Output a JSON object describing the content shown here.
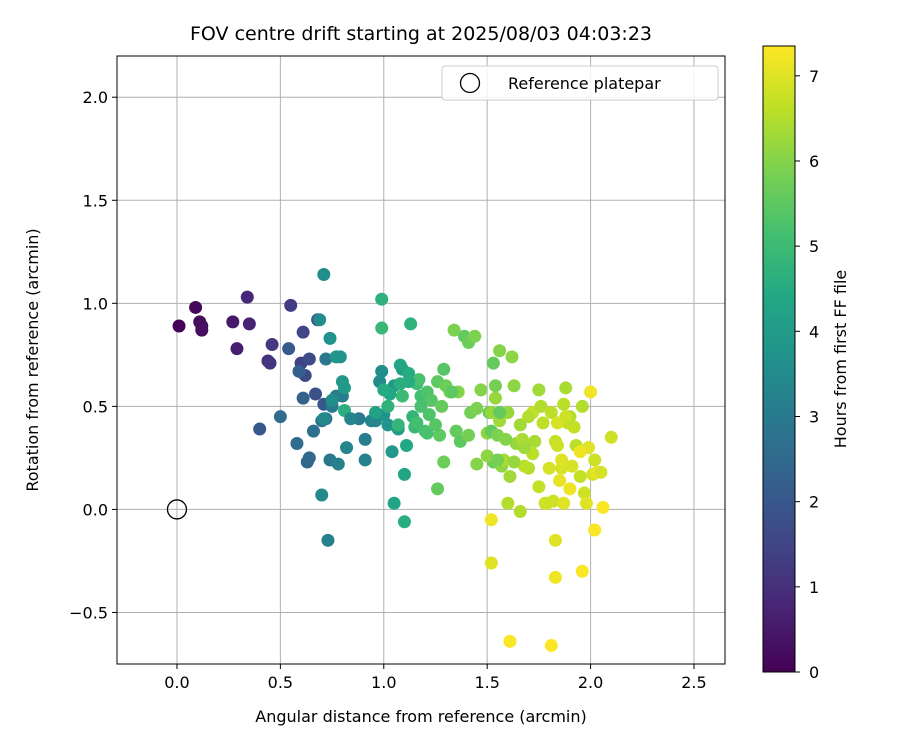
{
  "chart_data": {
    "type": "scatter",
    "title": "FOV centre drift starting at 2025/08/03 04:03:23",
    "xlabel": "Angular distance from reference (arcmin)",
    "ylabel": "Rotation from reference (arcmin)",
    "xlim": [
      -0.29,
      2.65
    ],
    "ylim": [
      -0.75,
      2.2
    ],
    "x_ticks": [
      0.0,
      0.5,
      1.0,
      1.5,
      2.0,
      2.5
    ],
    "x_tick_labels": [
      "0.0",
      "0.5",
      "1.0",
      "1.5",
      "2.0",
      "2.5"
    ],
    "y_ticks": [
      -0.5,
      0.0,
      0.5,
      1.0,
      1.5,
      2.0
    ],
    "y_tick_labels": [
      "−0.5",
      "0.0",
      "0.5",
      "1.0",
      "1.5",
      "2.0"
    ],
    "grid": true,
    "legend": {
      "position": "top-right",
      "entries": [
        "Reference platepar"
      ]
    },
    "reference_point": {
      "x": 0.0,
      "y": 0.0
    },
    "colorbar": {
      "label": "Hours from first FF file",
      "colormap": "viridis",
      "range": [
        0,
        7.35
      ],
      "ticks": [
        0,
        1,
        2,
        3,
        4,
        5,
        6,
        7
      ],
      "tick_labels": [
        "0",
        "1",
        "2",
        "3",
        "4",
        "5",
        "6",
        "7"
      ]
    },
    "points": [
      [
        0.01,
        0.89,
        0.05
      ],
      [
        0.09,
        0.98,
        0.15
      ],
      [
        0.11,
        0.91,
        0.2
      ],
      [
        0.12,
        0.87,
        0.25
      ],
      [
        0.12,
        0.89,
        0.3
      ],
      [
        0.27,
        0.91,
        0.5
      ],
      [
        0.29,
        0.78,
        0.6
      ],
      [
        0.34,
        1.03,
        0.8
      ],
      [
        0.35,
        0.9,
        0.7
      ],
      [
        0.44,
        0.72,
        1.0
      ],
      [
        0.45,
        0.71,
        1.1
      ],
      [
        0.46,
        0.8,
        1.2
      ],
      [
        0.55,
        0.99,
        1.3
      ],
      [
        0.6,
        0.71,
        1.4
      ],
      [
        0.61,
        0.86,
        1.5
      ],
      [
        0.62,
        0.65,
        1.6
      ],
      [
        0.64,
        0.73,
        1.7
      ],
      [
        0.67,
        0.56,
        1.8
      ],
      [
        0.68,
        0.92,
        1.9
      ],
      [
        0.71,
        0.51,
        2.0
      ],
      [
        0.4,
        0.39,
        2.0
      ],
      [
        0.54,
        0.78,
        2.1
      ],
      [
        0.59,
        0.67,
        2.2
      ],
      [
        0.61,
        0.54,
        2.3
      ],
      [
        0.63,
        0.23,
        2.4
      ],
      [
        0.64,
        0.25,
        2.5
      ],
      [
        0.58,
        0.32,
        2.6
      ],
      [
        0.5,
        0.45,
        2.6
      ],
      [
        0.66,
        0.38,
        2.7
      ],
      [
        0.7,
        0.43,
        2.8
      ],
      [
        0.72,
        0.44,
        2.8
      ],
      [
        0.74,
        0.24,
        2.9
      ],
      [
        0.72,
        0.73,
        2.9
      ],
      [
        0.75,
        0.5,
        3.0
      ],
      [
        0.77,
        0.55,
        3.0
      ],
      [
        0.8,
        0.55,
        3.1
      ],
      [
        0.78,
        0.22,
        3.2
      ],
      [
        0.82,
        0.3,
        3.3
      ],
      [
        0.71,
        0.44,
        3.4
      ],
      [
        0.69,
        0.92,
        3.5
      ],
      [
        0.71,
        1.14,
        3.6
      ],
      [
        0.74,
        0.83,
        3.7
      ],
      [
        0.73,
        -0.15,
        3.2
      ],
      [
        0.7,
        0.07,
        3.4
      ],
      [
        0.79,
        0.74,
        3.8
      ],
      [
        0.77,
        0.74,
        3.8
      ],
      [
        0.8,
        0.62,
        3.9
      ],
      [
        0.81,
        0.59,
        4.0
      ],
      [
        0.88,
        0.44,
        3.0
      ],
      [
        0.91,
        0.34,
        3.1
      ],
      [
        0.91,
        0.24,
        3.2
      ],
      [
        0.94,
        0.43,
        3.3
      ],
      [
        0.96,
        0.43,
        3.4
      ],
      [
        0.98,
        0.62,
        3.5
      ],
      [
        0.99,
        0.67,
        3.6
      ],
      [
        1.0,
        0.46,
        3.7
      ],
      [
        1.02,
        0.41,
        3.8
      ],
      [
        1.04,
        0.28,
        3.9
      ],
      [
        1.05,
        0.6,
        4.0
      ],
      [
        1.07,
        0.39,
        4.1
      ],
      [
        1.09,
        0.68,
        4.2
      ],
      [
        1.1,
        0.17,
        4.3
      ],
      [
        1.11,
        0.31,
        4.4
      ],
      [
        1.12,
        0.66,
        4.5
      ],
      [
        1.05,
        0.03,
        4.3
      ],
      [
        1.1,
        -0.06,
        4.6
      ],
      [
        1.13,
        0.9,
        4.7
      ],
      [
        1.14,
        0.45,
        4.8
      ],
      [
        1.15,
        0.4,
        4.9
      ],
      [
        1.16,
        0.61,
        5.0
      ],
      [
        1.18,
        0.55,
        5.1
      ],
      [
        1.2,
        0.38,
        5.2
      ],
      [
        1.21,
        0.57,
        5.3
      ],
      [
        1.23,
        0.53,
        5.4
      ],
      [
        1.27,
        0.36,
        5.5
      ],
      [
        1.28,
        0.5,
        5.6
      ],
      [
        1.29,
        0.23,
        5.7
      ],
      [
        1.32,
        0.57,
        5.8
      ],
      [
        1.34,
        0.87,
        5.9
      ],
      [
        1.36,
        0.57,
        6.0
      ],
      [
        1.37,
        0.33,
        5.5
      ],
      [
        1.39,
        0.84,
        5.6
      ],
      [
        1.41,
        0.81,
        5.7
      ],
      [
        1.42,
        0.47,
        5.8
      ],
      [
        1.44,
        0.84,
        5.9
      ],
      [
        1.45,
        0.22,
        6.0
      ],
      [
        1.5,
        0.37,
        6.1
      ],
      [
        1.51,
        0.47,
        5.5
      ],
      [
        1.52,
        0.38,
        5.6
      ],
      [
        1.53,
        0.23,
        5.7
      ],
      [
        1.53,
        0.71,
        5.6
      ],
      [
        1.54,
        0.6,
        5.8
      ],
      [
        1.55,
        0.36,
        5.9
      ],
      [
        1.56,
        0.77,
        6.0
      ],
      [
        1.57,
        0.21,
        6.1
      ],
      [
        1.6,
        0.47,
        6.2
      ],
      [
        1.61,
        0.16,
        6.3
      ],
      [
        1.62,
        0.74,
        6.1
      ],
      [
        1.64,
        0.32,
        6.2
      ],
      [
        1.66,
        0.41,
        6.3
      ],
      [
        1.67,
        0.34,
        6.4
      ],
      [
        1.7,
        0.2,
        6.5
      ],
      [
        1.72,
        0.27,
        6.6
      ],
      [
        1.72,
        0.47,
        6.7
      ],
      [
        1.75,
        0.58,
        6.3
      ],
      [
        1.76,
        0.5,
        6.5
      ],
      [
        1.78,
        0.03,
        6.8
      ],
      [
        1.8,
        0.2,
        6.9
      ],
      [
        1.81,
        0.47,
        6.6
      ],
      [
        1.83,
        0.33,
        6.7
      ],
      [
        1.84,
        0.31,
        6.8
      ],
      [
        1.86,
        0.2,
        6.9
      ],
      [
        1.87,
        0.51,
        6.6
      ],
      [
        1.88,
        0.59,
        6.4
      ],
      [
        1.89,
        0.42,
        6.7
      ],
      [
        1.9,
        0.45,
        6.5
      ],
      [
        1.93,
        0.31,
        6.6
      ],
      [
        1.95,
        0.16,
        6.7
      ],
      [
        1.96,
        0.5,
        6.5
      ],
      [
        1.97,
        0.08,
        6.8
      ],
      [
        1.99,
        0.3,
        7.0
      ],
      [
        2.0,
        0.57,
        7.2
      ],
      [
        2.01,
        0.17,
        6.9
      ],
      [
        2.02,
        0.24,
        6.8
      ],
      [
        2.03,
        0.18,
        7.1
      ],
      [
        2.05,
        0.18,
        6.9
      ],
      [
        2.06,
        0.01,
        7.3
      ],
      [
        2.1,
        0.35,
        6.8
      ],
      [
        1.52,
        -0.05,
        7.2
      ],
      [
        1.52,
        -0.26,
        7.0
      ],
      [
        1.61,
        -0.64,
        7.3
      ],
      [
        1.81,
        -0.66,
        7.35
      ],
      [
        1.83,
        -0.33,
        7.2
      ],
      [
        1.83,
        -0.15,
        7.0
      ],
      [
        1.96,
        -0.3,
        7.3
      ],
      [
        2.02,
        -0.1,
        7.3
      ],
      [
        1.98,
        0.03,
        7.0
      ],
      [
        1.9,
        0.1,
        7.2
      ],
      [
        1.85,
        0.14,
        7.1
      ],
      [
        1.95,
        0.28,
        7.2
      ],
      [
        1.26,
        0.1,
        5.6
      ],
      [
        1.29,
        0.68,
        5.4
      ],
      [
        1.17,
        0.63,
        5.2
      ],
      [
        1.08,
        0.7,
        4.3
      ],
      [
        1.12,
        0.62,
        4.5
      ],
      [
        0.99,
        1.02,
        4.7
      ],
      [
        0.99,
        0.88,
        4.9
      ],
      [
        0.81,
        0.48,
        4.6
      ],
      [
        1.02,
        0.5,
        4.7
      ],
      [
        1.07,
        0.41,
        4.8
      ],
      [
        1.09,
        0.55,
        5.0
      ],
      [
        1.16,
        0.42,
        5.1
      ],
      [
        1.18,
        0.5,
        5.2
      ],
      [
        1.22,
        0.46,
        5.3
      ],
      [
        1.26,
        0.62,
        5.5
      ],
      [
        1.3,
        0.6,
        5.7
      ],
      [
        1.41,
        0.36,
        5.8
      ],
      [
        1.45,
        0.49,
        5.9
      ],
      [
        1.47,
        0.58,
        6.0
      ],
      [
        1.5,
        0.26,
        6.1
      ],
      [
        1.52,
        0.47,
        6.2
      ],
      [
        1.54,
        0.54,
        6.2
      ],
      [
        1.56,
        0.43,
        6.3
      ],
      [
        1.58,
        0.24,
        6.4
      ],
      [
        1.6,
        0.03,
        6.5
      ],
      [
        1.63,
        0.6,
        6.1
      ],
      [
        1.66,
        -0.01,
        6.5
      ],
      [
        1.68,
        0.21,
        6.6
      ],
      [
        1.7,
        0.45,
        6.5
      ],
      [
        1.73,
        0.33,
        6.4
      ],
      [
        1.75,
        0.11,
        6.7
      ],
      [
        1.77,
        0.42,
        6.6
      ],
      [
        1.79,
        0.03,
        6.8
      ],
      [
        1.82,
        0.04,
        6.8
      ],
      [
        1.84,
        0.42,
        6.9
      ],
      [
        1.86,
        0.24,
        7.0
      ],
      [
        1.87,
        0.03,
        7.0
      ],
      [
        1.88,
        0.45,
        6.8
      ],
      [
        1.91,
        0.21,
        6.9
      ],
      [
        1.92,
        0.4,
        6.7
      ],
      [
        1.55,
        0.24,
        5.8
      ],
      [
        1.56,
        0.47,
        5.6
      ],
      [
        1.59,
        0.34,
        6.0
      ],
      [
        1.63,
        0.23,
        6.2
      ],
      [
        1.68,
        0.3,
        6.3
      ],
      [
        1.33,
        0.57,
        5.5
      ],
      [
        1.35,
        0.38,
        5.6
      ],
      [
        1.21,
        0.37,
        5.2
      ],
      [
        1.25,
        0.41,
        5.4
      ],
      [
        0.96,
        0.47,
        4.2
      ],
      [
        1.03,
        0.56,
        4.4
      ],
      [
        1.08,
        0.61,
        4.6
      ],
      [
        1.0,
        0.58,
        4.5
      ],
      [
        0.75,
        0.53,
        3.6
      ],
      [
        0.84,
        0.44,
        3.3
      ]
    ]
  }
}
